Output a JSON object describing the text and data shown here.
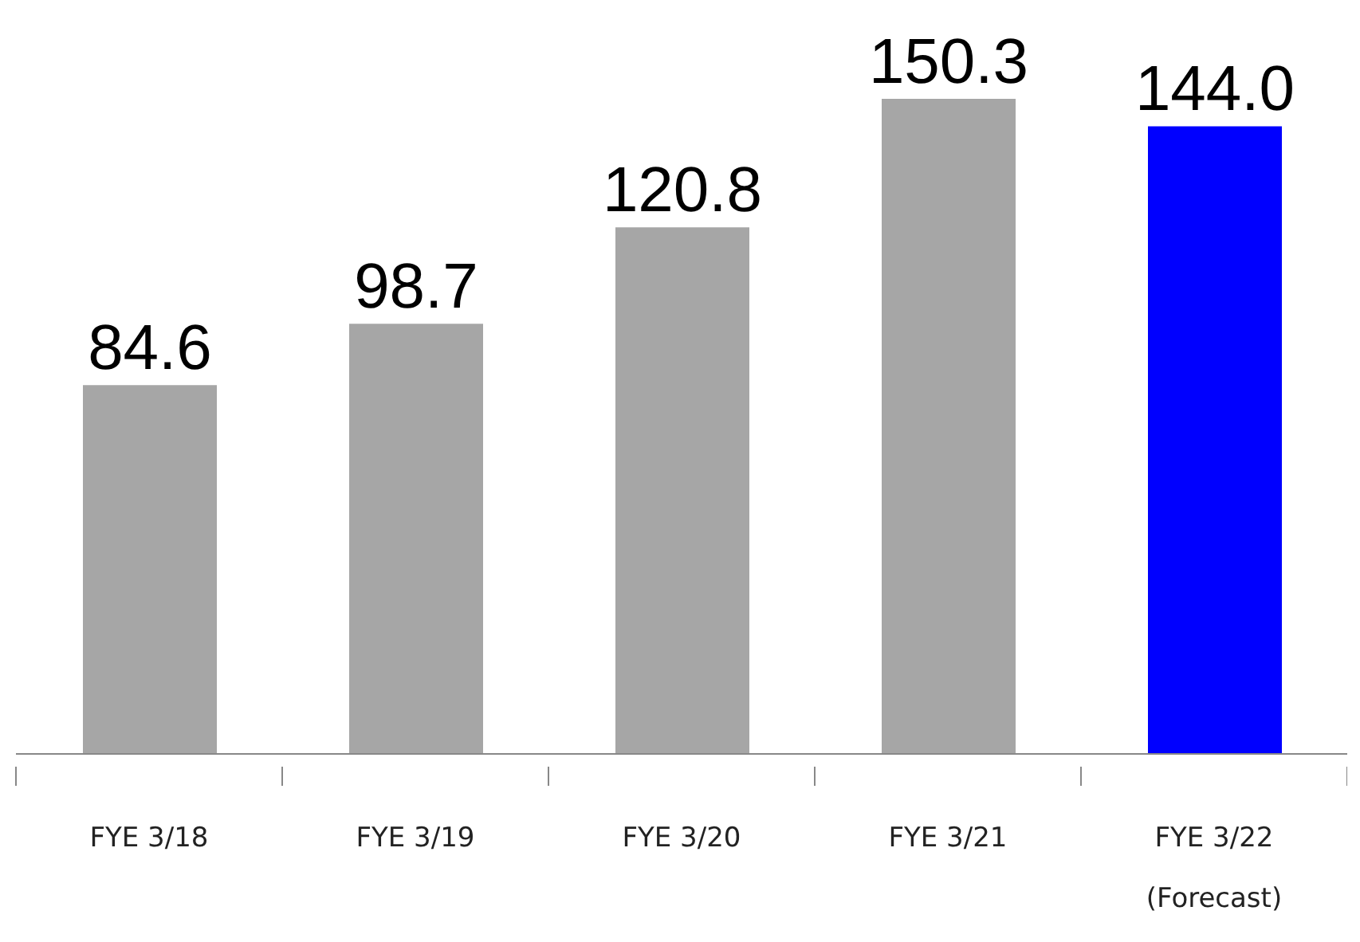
{
  "chart_data": {
    "type": "bar",
    "categories": [
      "FYE 3/18",
      "FYE 3/19",
      "FYE 3/20",
      "FYE 3/21",
      "FYE 3/22\n(Forecast)"
    ],
    "values": [
      84.6,
      98.7,
      120.8,
      150.3,
      144.0
    ],
    "colors": [
      "#a6a6a6",
      "#a6a6a6",
      "#a6a6a6",
      "#a6a6a6",
      "#0000ff"
    ],
    "value_labels": [
      "84.6",
      "98.7",
      "120.8",
      "150.3",
      "144.0"
    ]
  }
}
